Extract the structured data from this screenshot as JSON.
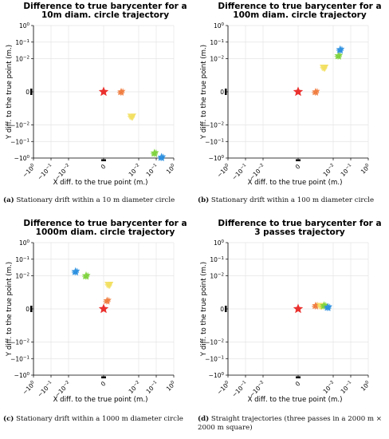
{
  "chart_data": [
    {
      "type": "scatter",
      "title_lines": [
        "Difference to true barycenter for a",
        "10m diam. circle trajectory"
      ],
      "xlabel": "X diff. to the true point (m.)",
      "ylabel": "Y diff. to the true point (m.)",
      "x_scale": "symlog",
      "y_scale": "symlog",
      "xlim": [
        -1,
        1
      ],
      "ylim": [
        -1,
        1
      ],
      "x_ticks": [
        "-10^0",
        "-10^-1",
        "-10^-2",
        "0",
        "10^-2",
        "10^-1",
        "10^0"
      ],
      "y_ticks": [
        "10^0",
        "10^-1",
        "10^-2",
        "0",
        "-10^-2",
        "-10^-1",
        "-10^0"
      ],
      "grid": true,
      "caption_tag": "(a)",
      "caption": "Stationary drift within a 10 m diameter circle",
      "clusters": [
        {
          "color": "#e8201c",
          "x": 0,
          "y": 0
        },
        {
          "color": "#f07a3c",
          "x": 0.001,
          "y": 0
        },
        {
          "color": "#f2e060",
          "x": 0.004,
          "y": -0.003
        },
        {
          "color": "#7ed23c",
          "x": 0.08,
          "y": -0.5
        },
        {
          "color": "#2a8fe0",
          "x": 0.2,
          "y": -0.9
        }
      ]
    },
    {
      "type": "scatter",
      "title_lines": [
        "Difference to true barycenter for a",
        "100m diam. circle trajectory"
      ],
      "xlabel": "X diff. to the true point (m.)",
      "ylabel": "Y diff. to the true point (m.)",
      "x_scale": "symlog",
      "y_scale": "symlog",
      "xlim": [
        -1,
        1
      ],
      "ylim": [
        -1,
        1
      ],
      "x_ticks": [
        "-10^0",
        "-10^-1",
        "-10^-2",
        "0",
        "10^-2",
        "10^-1",
        "10^0"
      ],
      "y_ticks": [
        "10^0",
        "10^-1",
        "10^-2",
        "0",
        "-10^-2",
        "-10^-1",
        "-10^0"
      ],
      "grid": true,
      "caption_tag": "(b)",
      "caption": "Stationary drift within a 100 m diameter circle",
      "clusters": [
        {
          "color": "#e8201c",
          "x": 0,
          "y": 0
        },
        {
          "color": "#f07a3c",
          "x": 0.001,
          "y": 0
        },
        {
          "color": "#f2e060",
          "x": 0.003,
          "y": 0.003
        },
        {
          "color": "#7ed23c",
          "x": 0.02,
          "y": 0.015
        },
        {
          "color": "#2a8fe0",
          "x": 0.025,
          "y": 0.035
        }
      ]
    },
    {
      "type": "scatter",
      "title_lines": [
        "Difference to true barycenter for a",
        "1000m diam. circle trajectory"
      ],
      "xlabel": "X diff. to the true point (m.)",
      "ylabel": "Y diff. to the true point (m.)",
      "x_scale": "symlog",
      "y_scale": "symlog",
      "xlim": [
        -1,
        1
      ],
      "ylim": [
        -1,
        1
      ],
      "x_ticks": [
        "-10^0",
        "-10^-1",
        "-10^-2",
        "0",
        "10^-2",
        "10^-1",
        "10^0"
      ],
      "y_ticks": [
        "10^0",
        "10^-1",
        "10^-2",
        "0",
        "-10^-2",
        "-10^-1",
        "-10^0"
      ],
      "grid": true,
      "caption_tag": "(c)",
      "caption": "Stationary drift within a 1000 m diameter circle",
      "clusters": [
        {
          "color": "#e8201c",
          "x": 0,
          "y": 0
        },
        {
          "color": "#f07a3c",
          "x": 0.0002,
          "y": 0.0005
        },
        {
          "color": "#f2e060",
          "x": 0.0003,
          "y": 0.003
        },
        {
          "color": "#7ed23c",
          "x": -0.001,
          "y": 0.01
        },
        {
          "color": "#2a8fe0",
          "x": -0.004,
          "y": 0.018
        }
      ]
    },
    {
      "type": "scatter",
      "title_lines": [
        "Difference to true barycenter for a",
        "3 passes trajectory"
      ],
      "xlabel": "X diff. to the true point (m.)",
      "ylabel": "Y diff. to the true point (m.)",
      "x_scale": "symlog",
      "y_scale": "symlog",
      "xlim": [
        -1,
        1
      ],
      "ylim": [
        -1,
        1
      ],
      "x_ticks": [
        "-10^0",
        "-10^-1",
        "-10^-2",
        "0",
        "10^-2",
        "10^-1",
        "10^0"
      ],
      "y_ticks": [
        "10^0",
        "10^-1",
        "10^-2",
        "0",
        "-10^-2",
        "-10^-1",
        "-10^0"
      ],
      "grid": true,
      "caption_tag": "(d)",
      "caption": "Straight trajectories (three passes in a 2000 m × 2000 m square)",
      "clusters": [
        {
          "color": "#e8201c",
          "x": 0,
          "y": 0
        },
        {
          "color": "#f07a3c",
          "x": 0.001,
          "y": 0.0002
        },
        {
          "color": "#f2e060",
          "x": 0.002,
          "y": 0.0002
        },
        {
          "color": "#7ed23c",
          "x": 0.003,
          "y": 0.0002
        },
        {
          "color": "#2a8fe0",
          "x": 0.005,
          "y": 0.0001
        }
      ]
    }
  ]
}
